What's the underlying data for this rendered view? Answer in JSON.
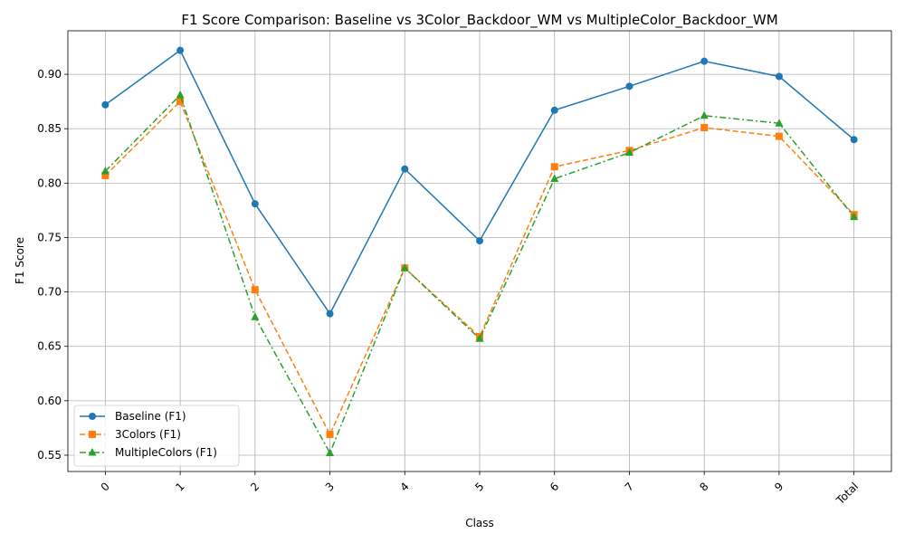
{
  "chart_data": {
    "type": "line",
    "title": "F1 Score Comparison: Baseline vs 3Color_Backdoor_WM vs MultipleColor_Backdoor_WM",
    "xlabel": "Class",
    "ylabel": "F1 Score",
    "categories": [
      "0",
      "1",
      "2",
      "3",
      "4",
      "5",
      "6",
      "7",
      "8",
      "9",
      "Total"
    ],
    "ylim": [
      0.535,
      0.94
    ],
    "yticks": [
      0.55,
      0.6,
      0.65,
      0.7,
      0.75,
      0.8,
      0.85,
      0.9
    ],
    "ytick_labels": [
      "0.55",
      "0.60",
      "0.65",
      "0.70",
      "0.75",
      "0.80",
      "0.85",
      "0.90"
    ],
    "xtick_rotation_deg": 45,
    "grid": true,
    "legend_position": "lower-left",
    "series": [
      {
        "name": "Baseline (F1)",
        "color": "#1f77b4",
        "marker": "circle",
        "line_style": "solid",
        "values": [
          0.872,
          0.922,
          0.781,
          0.68,
          0.813,
          0.747,
          0.867,
          0.889,
          0.912,
          0.898,
          0.84
        ]
      },
      {
        "name": "3Colors (F1)",
        "color": "#ff7f0e",
        "marker": "square",
        "line_style": "dashed",
        "values": [
          0.807,
          0.875,
          0.702,
          0.569,
          0.722,
          0.659,
          0.815,
          0.83,
          0.851,
          0.843,
          0.771
        ]
      },
      {
        "name": "MultipleColors (F1)",
        "color": "#2ca02c",
        "marker": "triangle",
        "line_style": "dashdot",
        "values": [
          0.811,
          0.881,
          0.677,
          0.552,
          0.722,
          0.657,
          0.804,
          0.828,
          0.862,
          0.855,
          0.769
        ]
      }
    ]
  }
}
